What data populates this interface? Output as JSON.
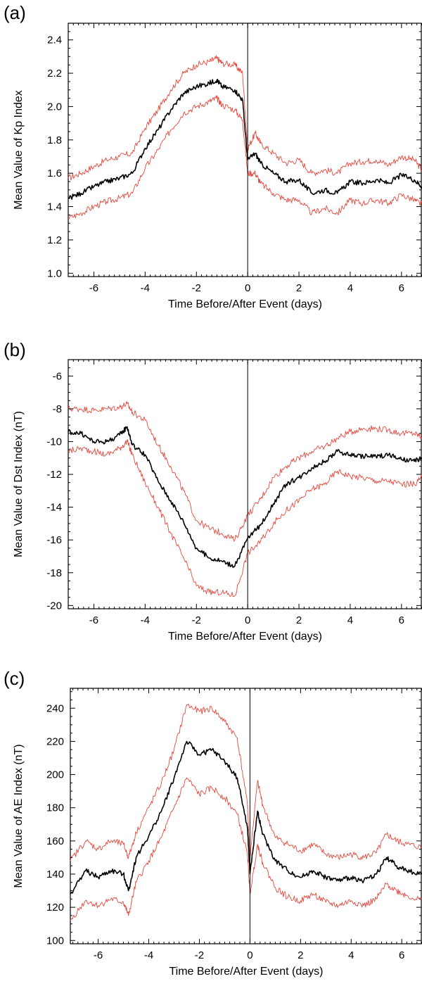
{
  "chart_data": [
    {
      "type": "line",
      "panel_label": "(a)",
      "xlabel": "Time Before/After Event (days)",
      "ylabel": "Mean Value of Kp Index",
      "xlim": [
        -7,
        6.8
      ],
      "ylim": [
        0.98,
        2.5
      ],
      "xticks": [
        -6,
        -4,
        -2,
        0,
        2,
        4,
        6
      ],
      "yticks": [
        1.0,
        1.2,
        1.4,
        1.6,
        1.8,
        2.0,
        2.2,
        2.4
      ],
      "ytick_labels": [
        "1.0",
        "1.2",
        "1.4",
        "1.6",
        "1.8",
        "2.0",
        "2.2",
        "2.4"
      ],
      "event_line_x": 0,
      "colors": {
        "mean": "#000000",
        "bounds": "#e8473c"
      },
      "grid": false,
      "series": [
        {
          "role": "upper",
          "x": [
            -7,
            -6.5,
            -6,
            -5.5,
            -5,
            -4.5,
            -4,
            -3.5,
            -3,
            -2.5,
            -2,
            -1.5,
            -1.2,
            -1,
            -0.5,
            -0.2,
            0,
            0.3,
            0.5,
            1,
            1.5,
            2,
            2.5,
            3,
            3.5,
            4,
            4.5,
            5,
            5.5,
            6,
            6.5,
            6.8
          ],
          "y": [
            1.57,
            1.6,
            1.64,
            1.68,
            1.7,
            1.72,
            1.87,
            1.98,
            2.1,
            2.2,
            2.25,
            2.27,
            2.29,
            2.26,
            2.25,
            2.2,
            1.75,
            1.84,
            1.78,
            1.72,
            1.66,
            1.68,
            1.6,
            1.62,
            1.6,
            1.66,
            1.67,
            1.68,
            1.65,
            1.7,
            1.68,
            1.62
          ]
        },
        {
          "role": "mean",
          "x": [
            -7,
            -6.5,
            -6,
            -5.5,
            -5,
            -4.5,
            -4,
            -3.5,
            -3,
            -2.5,
            -2,
            -1.5,
            -1.2,
            -1,
            -0.5,
            -0.2,
            0,
            0.3,
            0.5,
            1,
            1.5,
            2,
            2.5,
            3,
            3.5,
            4,
            4.5,
            5,
            5.5,
            6,
            6.5,
            6.8
          ],
          "y": [
            1.45,
            1.48,
            1.52,
            1.55,
            1.57,
            1.6,
            1.75,
            1.86,
            1.98,
            2.08,
            2.12,
            2.14,
            2.16,
            2.12,
            2.1,
            2.04,
            1.68,
            1.72,
            1.66,
            1.6,
            1.55,
            1.56,
            1.48,
            1.5,
            1.48,
            1.55,
            1.54,
            1.56,
            1.54,
            1.59,
            1.56,
            1.52
          ]
        },
        {
          "role": "lower",
          "x": [
            -7,
            -6.5,
            -6,
            -5.5,
            -5,
            -4.5,
            -4,
            -3.5,
            -3,
            -2.5,
            -2,
            -1.5,
            -1.2,
            -1,
            -0.5,
            -0.2,
            0,
            0.3,
            0.5,
            1,
            1.5,
            2,
            2.5,
            3,
            3.5,
            4,
            4.5,
            5,
            5.5,
            6,
            6.5,
            6.8
          ],
          "y": [
            1.33,
            1.36,
            1.4,
            1.43,
            1.45,
            1.48,
            1.63,
            1.74,
            1.86,
            1.96,
            2.0,
            2.03,
            2.05,
            2.01,
            1.98,
            1.92,
            1.6,
            1.6,
            1.54,
            1.48,
            1.44,
            1.44,
            1.36,
            1.39,
            1.36,
            1.44,
            1.42,
            1.44,
            1.42,
            1.47,
            1.44,
            1.41
          ]
        }
      ]
    },
    {
      "type": "line",
      "panel_label": "(b)",
      "xlabel": "Time Before/After Event (days)",
      "ylabel": "Mean Value of Dst Index (nT)",
      "xlim": [
        -7,
        6.8
      ],
      "ylim": [
        -20.2,
        -5
      ],
      "xticks": [
        -6,
        -4,
        -2,
        0,
        2,
        4,
        6
      ],
      "yticks": [
        -20,
        -18,
        -16,
        -14,
        -12,
        -10,
        -8,
        -6
      ],
      "ytick_labels": [
        "-20",
        "-18",
        "-16",
        "-14",
        "-12",
        "-10",
        "-8",
        "-6"
      ],
      "event_line_x": 0,
      "colors": {
        "mean": "#000000",
        "bounds": "#e8473c"
      },
      "grid": false,
      "series": [
        {
          "role": "upper",
          "x": [
            -7,
            -6.5,
            -6,
            -5.5,
            -5,
            -4.7,
            -4.5,
            -4,
            -3.5,
            -3,
            -2.5,
            -2,
            -1.5,
            -1,
            -0.5,
            0,
            0.5,
            1,
            1.5,
            2,
            2.5,
            3,
            3.5,
            4,
            4.5,
            5,
            5.5,
            6,
            6.5,
            6.8
          ],
          "y": [
            -8.0,
            -8.0,
            -8.1,
            -8.0,
            -7.9,
            -7.7,
            -8.2,
            -8.7,
            -10.2,
            -11.5,
            -13.0,
            -14.8,
            -15.3,
            -15.6,
            -16.0,
            -14.5,
            -13.5,
            -12.2,
            -11.5,
            -11.0,
            -10.6,
            -10.3,
            -9.8,
            -9.4,
            -9.2,
            -9.2,
            -9.3,
            -9.5,
            -9.5,
            -9.7
          ]
        },
        {
          "role": "mean",
          "x": [
            -7,
            -6.5,
            -6,
            -5.5,
            -5,
            -4.7,
            -4.5,
            -4,
            -3.5,
            -3,
            -2.5,
            -2,
            -1.5,
            -1,
            -0.5,
            0,
            0.5,
            1,
            1.5,
            2,
            2.5,
            3,
            3.5,
            4,
            4.5,
            5,
            5.5,
            6,
            6.5,
            6.8
          ],
          "y": [
            -9.4,
            -9.5,
            -10.0,
            -10.0,
            -9.6,
            -9.1,
            -10.2,
            -10.8,
            -12.4,
            -13.6,
            -14.9,
            -16.5,
            -17.1,
            -17.3,
            -17.6,
            -15.9,
            -15.1,
            -13.8,
            -12.6,
            -12.2,
            -11.6,
            -11.2,
            -10.6,
            -10.8,
            -10.9,
            -10.9,
            -10.8,
            -11.1,
            -11.2,
            -11.0
          ]
        },
        {
          "role": "lower",
          "x": [
            -7,
            -6.5,
            -6,
            -5.5,
            -5,
            -4.7,
            -4.5,
            -4,
            -3.5,
            -3,
            -2.5,
            -2,
            -1.5,
            -1,
            -0.5,
            0,
            0.5,
            1,
            1.5,
            2,
            2.5,
            3,
            3.5,
            4,
            4.5,
            5,
            5.5,
            6,
            6.5,
            6.8
          ],
          "y": [
            -10.6,
            -10.4,
            -10.6,
            -10.8,
            -10.4,
            -10.0,
            -10.8,
            -12.5,
            -14.0,
            -15.6,
            -17.1,
            -18.8,
            -19.2,
            -19.2,
            -19.4,
            -16.8,
            -16.1,
            -15.0,
            -14.2,
            -13.6,
            -12.9,
            -12.6,
            -11.8,
            -12.1,
            -12.2,
            -12.4,
            -12.4,
            -12.6,
            -12.6,
            -12.2
          ]
        }
      ]
    },
    {
      "type": "line",
      "panel_label": "(c)",
      "xlabel": "Time Before/After Event (days)",
      "ylabel": "Mean Value of AE Index (nT)",
      "xlim": [
        -7.1,
        6.8
      ],
      "ylim": [
        98,
        252
      ],
      "xticks": [
        -6,
        -4,
        -2,
        0,
        2,
        4,
        6
      ],
      "yticks": [
        100,
        120,
        140,
        160,
        180,
        200,
        220,
        240
      ],
      "ytick_labels": [
        "100",
        "120",
        "140",
        "160",
        "180",
        "200",
        "220",
        "240"
      ],
      "event_line_x": 0,
      "colors": {
        "mean": "#000000",
        "bounds": "#e8473c"
      },
      "grid": false,
      "series": [
        {
          "role": "upper",
          "x": [
            -7.1,
            -6.5,
            -6,
            -5.5,
            -5,
            -4.8,
            -4.5,
            -4,
            -3.5,
            -3,
            -2.5,
            -2,
            -1.5,
            -1,
            -0.5,
            -0.1,
            0,
            0.3,
            0.5,
            1,
            1.5,
            2,
            2.5,
            3,
            3.5,
            4,
            4.5,
            5,
            5.4,
            5.8,
            6.2,
            6.8
          ],
          "y": [
            148,
            160,
            155,
            160,
            158,
            150,
            165,
            180,
            195,
            215,
            242,
            238,
            240,
            232,
            222,
            182,
            150,
            196,
            182,
            162,
            158,
            154,
            158,
            152,
            150,
            152,
            150,
            153,
            164,
            160,
            158,
            156
          ]
        },
        {
          "role": "mean",
          "x": [
            -7.1,
            -6.5,
            -6,
            -5.5,
            -5,
            -4.8,
            -4.5,
            -4,
            -3.5,
            -3,
            -2.5,
            -2,
            -1.5,
            -1,
            -0.5,
            -0.1,
            0,
            0.3,
            0.5,
            1,
            1.5,
            2,
            2.5,
            3,
            3.5,
            4,
            4.5,
            5,
            5.4,
            5.8,
            6.2,
            6.8
          ],
          "y": [
            128,
            142,
            138,
            142,
            140,
            130,
            150,
            163,
            178,
            198,
            220,
            212,
            215,
            208,
            198,
            168,
            140,
            178,
            164,
            148,
            142,
            138,
            142,
            138,
            136,
            138,
            136,
            140,
            150,
            145,
            142,
            140
          ]
        },
        {
          "role": "lower",
          "x": [
            -7.1,
            -6.5,
            -6,
            -5.5,
            -5,
            -4.8,
            -4.5,
            -4,
            -3.5,
            -3,
            -2.5,
            -2,
            -1.5,
            -1,
            -0.5,
            -0.1,
            0,
            0.3,
            0.5,
            1,
            1.5,
            2,
            2.5,
            3,
            3.5,
            4,
            4.5,
            5,
            5.4,
            5.8,
            6.2,
            6.8
          ],
          "y": [
            112,
            124,
            121,
            125,
            123,
            115,
            135,
            148,
            162,
            180,
            198,
            188,
            192,
            186,
            176,
            152,
            128,
            158,
            147,
            132,
            126,
            124,
            128,
            123,
            121,
            124,
            121,
            125,
            134,
            130,
            127,
            124
          ]
        }
      ]
    }
  ]
}
